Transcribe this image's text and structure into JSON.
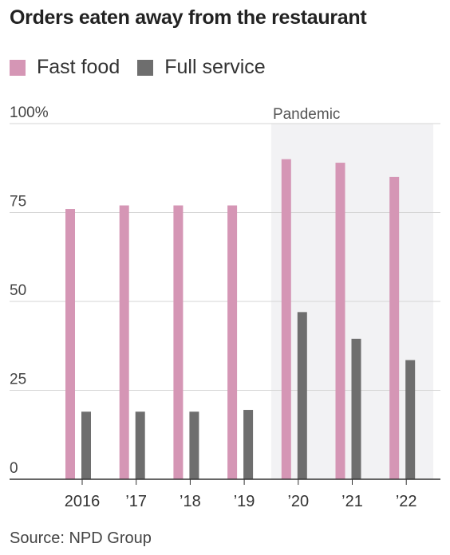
{
  "title": "Orders eaten away from the restaurant",
  "source": "Source: NPD Group",
  "legend": [
    {
      "label": "Fast food",
      "color": "#d596b5"
    },
    {
      "label": "Full service",
      "color": "#6e6e6e"
    }
  ],
  "chart_data": {
    "type": "bar",
    "title": "Orders eaten away from the restaurant",
    "categories": [
      "2016",
      "’17",
      "’18",
      "’19",
      "’20",
      "’21",
      "’22"
    ],
    "series": [
      {
        "name": "Fast food",
        "color": "#d596b5",
        "values": [
          76,
          77,
          77,
          77,
          90,
          89,
          85
        ]
      },
      {
        "name": "Full service",
        "color": "#6e6e6e",
        "values": [
          19,
          19,
          19,
          19.5,
          47,
          39.5,
          33.5
        ]
      }
    ],
    "ylim": [
      0,
      100
    ],
    "yticks": [
      {
        "value": 0,
        "label": "0"
      },
      {
        "value": 25,
        "label": "25"
      },
      {
        "value": 50,
        "label": "50"
      },
      {
        "value": 75,
        "label": "75"
      },
      {
        "value": 100,
        "label": "100%"
      }
    ],
    "grid": true,
    "highlight": {
      "label": "Pandemic",
      "from_category": "’20",
      "to_category": "’22"
    }
  }
}
